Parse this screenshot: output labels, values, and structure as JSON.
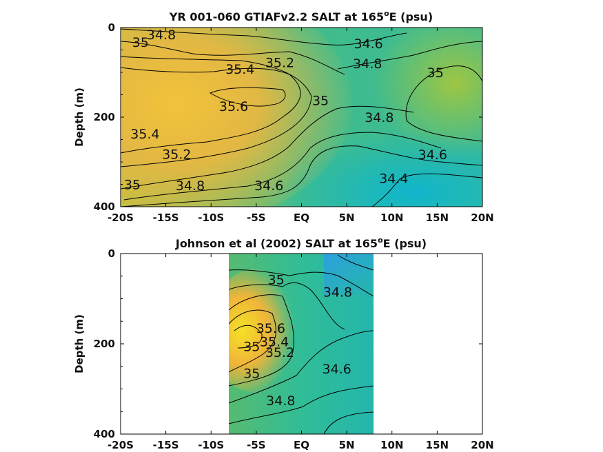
{
  "chart_data": [
    {
      "type": "heatmap",
      "title_main": "YR 001-060 GTIAFv2.2 SALT at 165",
      "title_sup": "o",
      "title_tail": "E (psu)",
      "ylabel": "Depth (m)",
      "xlabel": "",
      "x_ticks": [
        "-20S",
        "-15S",
        "-10S",
        "-5S",
        "EQ",
        "5N",
        "10N",
        "15N",
        "20N"
      ],
      "y_ticks": [
        "0",
        "200",
        "400"
      ],
      "xlim": [
        -20,
        20
      ],
      "ylim": [
        400,
        0
      ],
      "data_extent_x": [
        -20,
        20
      ],
      "contour_labels": [
        {
          "text": "34.8",
          "lat": -15.5,
          "depth": 15
        },
        {
          "text": "35",
          "lat": -17.8,
          "depth": 32
        },
        {
          "text": "35.4",
          "lat": -6.8,
          "depth": 92
        },
        {
          "text": "35.2",
          "lat": -2.4,
          "depth": 78
        },
        {
          "text": "35.6",
          "lat": -7.5,
          "depth": 175
        },
        {
          "text": "35.4",
          "lat": -17.3,
          "depth": 237
        },
        {
          "text": "35.2",
          "lat": -13.8,
          "depth": 282
        },
        {
          "text": "35",
          "lat": -18.7,
          "depth": 350
        },
        {
          "text": "34.8",
          "lat": -12.3,
          "depth": 352
        },
        {
          "text": "34.6",
          "lat": -3.6,
          "depth": 352
        },
        {
          "text": "35",
          "lat": 2.1,
          "depth": 162
        },
        {
          "text": "34.6",
          "lat": 7.4,
          "depth": 35
        },
        {
          "text": "34.8",
          "lat": 7.3,
          "depth": 80
        },
        {
          "text": "35",
          "lat": 14.8,
          "depth": 100
        },
        {
          "text": "34.8",
          "lat": 8.6,
          "depth": 200
        },
        {
          "text": "34.6",
          "lat": 14.5,
          "depth": 283
        },
        {
          "text": "34.4",
          "lat": 10.2,
          "depth": 336
        }
      ]
    },
    {
      "type": "heatmap",
      "title_main": "Johnson et al (2002) SALT at 165",
      "title_sup": "o",
      "title_tail": "E (psu)",
      "ylabel": "Depth (m)",
      "xlabel": "",
      "x_ticks": [
        "-20S",
        "-15S",
        "-10S",
        "-5S",
        "EQ",
        "5N",
        "10N",
        "15N",
        "20N"
      ],
      "y_ticks": [
        "0",
        "200",
        "400"
      ],
      "xlim": [
        -20,
        20
      ],
      "ylim": [
        400,
        0
      ],
      "data_extent_x": [
        -8,
        8
      ],
      "contour_labels": [
        {
          "text": "35",
          "lat": -2.8,
          "depth": 57
        },
        {
          "text": "34.8",
          "lat": 4.0,
          "depth": 85
        },
        {
          "text": "35.6",
          "lat": -3.4,
          "depth": 165
        },
        {
          "text": "35.4",
          "lat": -3.0,
          "depth": 195
        },
        {
          "text": "35",
          "lat": -5.5,
          "depth": 205
        },
        {
          "text": "35.2",
          "lat": -2.4,
          "depth": 218
        },
        {
          "text": "34.6",
          "lat": 3.9,
          "depth": 255
        },
        {
          "text": "35",
          "lat": -5.5,
          "depth": 265
        },
        {
          "text": "34.8",
          "lat": -2.3,
          "depth": 325
        }
      ]
    }
  ]
}
